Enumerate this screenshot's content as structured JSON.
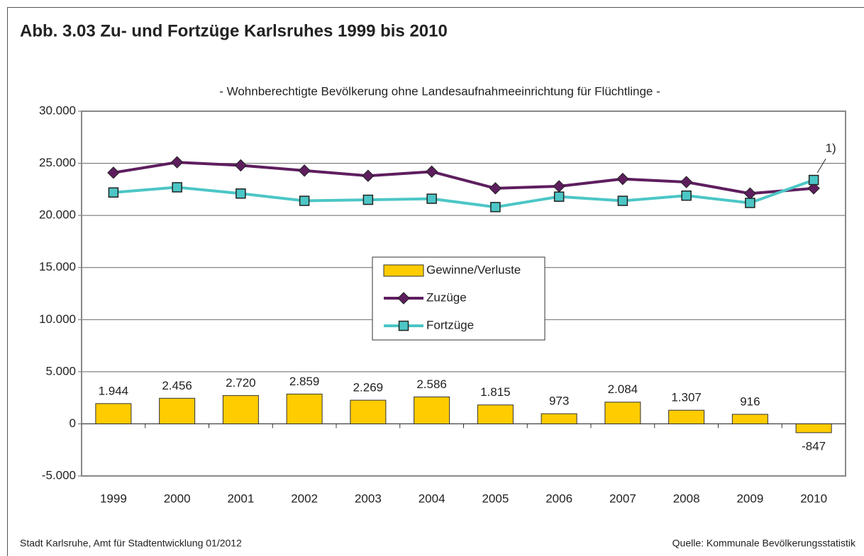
{
  "chart_data": {
    "type": "bar",
    "title": "Abb. 3.03 Zu- und Fortzüge Karlsruhes 1999 bis 2010",
    "subtitle": "- Wohnberechtigte Bevölkerung ohne Landesaufnahmeeinrichtung für Flüchtlinge -",
    "categories": [
      "1999",
      "2000",
      "2001",
      "2002",
      "2003",
      "2004",
      "2005",
      "2006",
      "2007",
      "2008",
      "2009",
      "2010"
    ],
    "series": [
      {
        "name": "Gewinne/Verluste",
        "type": "bar",
        "color": "#ffcc00",
        "values": [
          1944,
          2456,
          2720,
          2859,
          2269,
          2586,
          1815,
          973,
          2084,
          1307,
          916,
          -847
        ],
        "value_labels": [
          "1.944",
          "2.456",
          "2.720",
          "2.859",
          "2.269",
          "2.586",
          "1.815",
          "973",
          "2.084",
          "1.307",
          "916",
          "-847"
        ]
      },
      {
        "name": "Zuzüge",
        "type": "line",
        "marker": "diamond",
        "color": "#5e1e5e",
        "values": [
          24100,
          25100,
          24800,
          24300,
          23800,
          24200,
          22600,
          22800,
          23500,
          23200,
          22100,
          22600
        ]
      },
      {
        "name": "Fortzüge",
        "type": "line",
        "marker": "square",
        "color": "#4cc6c6",
        "values": [
          22200,
          22700,
          22100,
          21400,
          21500,
          21600,
          20800,
          21800,
          21400,
          21900,
          21200,
          23400
        ]
      }
    ],
    "annotation": "1)",
    "ylim": [
      -5000,
      30000
    ],
    "yticks": [
      {
        "value": -5000,
        "label": "-5.000"
      },
      0,
      {
        "value": 5000,
        "label": "5.000"
      },
      {
        "value": 10000,
        "label": "10.000"
      },
      {
        "value": 15000,
        "label": "15.000"
      },
      {
        "value": 20000,
        "label": "20.000"
      },
      {
        "value": 25000,
        "label": "25.000"
      },
      {
        "value": 30000,
        "label": "30.000"
      }
    ],
    "grid": true,
    "legend": "center",
    "footer_left": "Stadt Karlsruhe, Amt für Stadtentwicklung 01/2012",
    "footer_right": "Quelle: Kommunale Bevölkerungsstatistik"
  }
}
